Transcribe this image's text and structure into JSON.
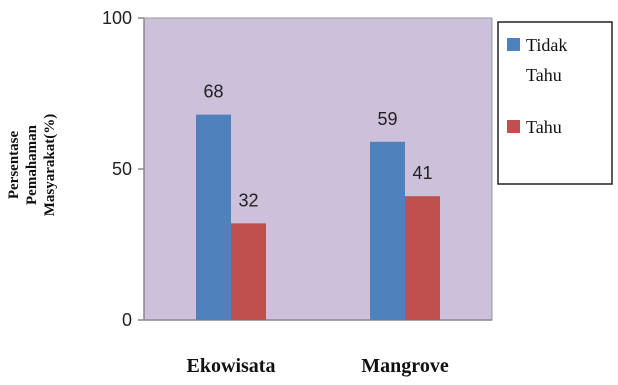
{
  "chart_data": {
    "type": "bar",
    "categories": [
      "Ekowisata",
      "Mangrove"
    ],
    "series": [
      {
        "name": "Tidak Tahu",
        "name_lines": [
          "Tidak",
          "Tahu"
        ],
        "values": [
          68,
          59
        ],
        "color": "#4F81BD"
      },
      {
        "name": "Tahu",
        "name_lines": [
          "Tahu"
        ],
        "values": [
          32,
          41
        ],
        "color": "#C0504D"
      }
    ],
    "ylabel": "Persentase Pemahaman Masyarakat(%)",
    "ylabel_lines": [
      "Persentase",
      "Pemahaman",
      "Masyarakat(%)"
    ],
    "ylim": [
      0,
      100
    ],
    "yticks": [
      "0",
      "50",
      "100"
    ],
    "grid": false,
    "plot_background": "#CCC0DA",
    "legend_position": "right"
  }
}
